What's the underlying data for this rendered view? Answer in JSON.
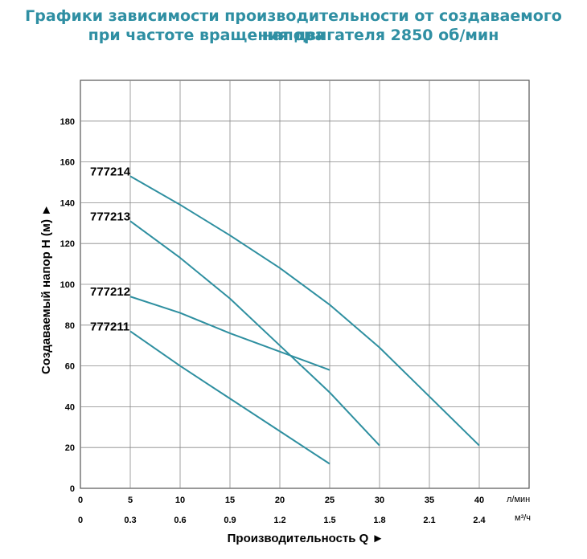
{
  "title_line1": "Графики зависимости производительности от создаваемого напора",
  "title_line2": "при частоте вращения двигателя 2850 об/мин",
  "chart_data": {
    "type": "line",
    "ylabel": "Создаваемый напор H (м)",
    "xlabel": "Производительность Q",
    "xlim": [
      0,
      45
    ],
    "ylim": [
      0,
      200
    ],
    "grid": true,
    "x_ticks_lmin": [
      "0",
      "5",
      "10",
      "15",
      "20",
      "25",
      "30",
      "35",
      "40"
    ],
    "x_ticks_m3h": [
      "0",
      "0.3",
      "0.6",
      "0.9",
      "1.2",
      "1.5",
      "1.8",
      "2.1",
      "2.4"
    ],
    "y_ticks": [
      "0",
      "20",
      "40",
      "60",
      "80",
      "100",
      "120",
      "140",
      "160",
      "180"
    ],
    "unit_lmin": "л/мин",
    "unit_m3h": "м³/ч",
    "axis_arrow": "►",
    "series": [
      {
        "name": "777214",
        "x": [
          5,
          10,
          15,
          20,
          25,
          30,
          35,
          40
        ],
        "y": [
          153,
          139,
          124,
          108,
          90,
          69,
          45,
          21
        ]
      },
      {
        "name": "777213",
        "x": [
          5,
          10,
          15,
          20,
          25,
          30
        ],
        "y": [
          131,
          113,
          93,
          70,
          47,
          21
        ]
      },
      {
        "name": "777212",
        "x": [
          5,
          10,
          15,
          20,
          25
        ],
        "y": [
          94,
          86,
          76,
          67,
          58
        ]
      },
      {
        "name": "777211",
        "x": [
          5,
          10,
          15,
          20,
          25
        ],
        "y": [
          77,
          60,
          44,
          28,
          12
        ]
      }
    ],
    "line_color": "#2e8fa0"
  }
}
